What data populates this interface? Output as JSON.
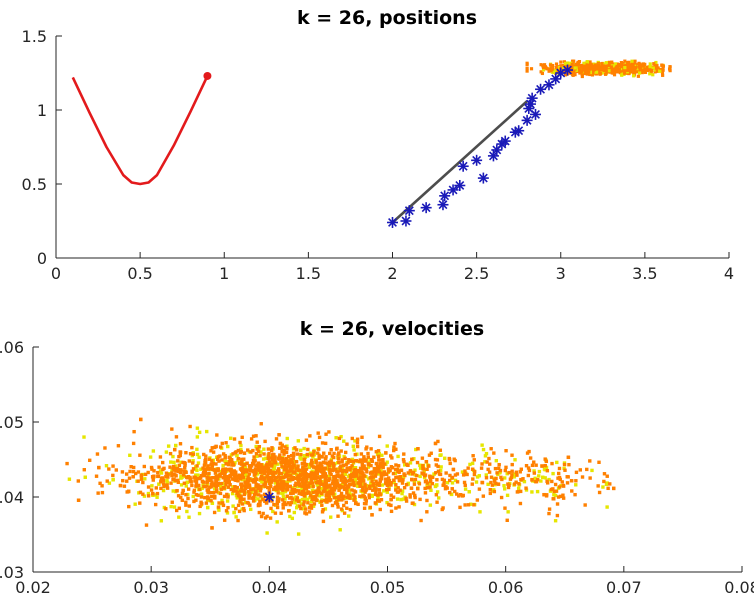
{
  "chart_data": [
    {
      "type": "line",
      "title": "k = 26, positions",
      "xlim": [
        0,
        4
      ],
      "ylim": [
        0,
        1.5
      ],
      "xticks": [
        "0",
        "0.5",
        "1",
        "1.5",
        "2",
        "2.5",
        "3",
        "3.5",
        "4"
      ],
      "yticks": [
        "0",
        "0.5",
        "1",
        "1.5"
      ],
      "grid": false,
      "colors": {
        "curve": "#e31a1c",
        "line": "#4d4d4d",
        "stars": "#1a1ab8",
        "cloud_orange": "#ff8000",
        "cloud_yellow": "#e6e600"
      },
      "curve": {
        "x": [
          0.1,
          0.2,
          0.3,
          0.4,
          0.45,
          0.5,
          0.55,
          0.6,
          0.7,
          0.8,
          0.9
        ],
        "y": [
          1.22,
          0.98,
          0.75,
          0.56,
          0.51,
          0.5,
          0.51,
          0.56,
          0.76,
          0.99,
          1.23
        ],
        "end_marker": [
          0.9,
          1.23
        ]
      },
      "segment": {
        "x": [
          2.0,
          2.8
        ],
        "y": [
          0.24,
          1.06
        ]
      },
      "stars": {
        "x": [
          2.0,
          2.08,
          2.1,
          2.2,
          2.3,
          2.31,
          2.36,
          2.4,
          2.42,
          2.5,
          2.54,
          2.6,
          2.62,
          2.65,
          2.67,
          2.73,
          2.75,
          2.8,
          2.81,
          2.82,
          2.83,
          2.85,
          2.88,
          2.93,
          2.97,
          3.0,
          3.04
        ],
        "y": [
          0.24,
          0.25,
          0.32,
          0.34,
          0.36,
          0.42,
          0.46,
          0.49,
          0.62,
          0.66,
          0.54,
          0.69,
          0.73,
          0.77,
          0.79,
          0.85,
          0.86,
          0.93,
          1.01,
          1.04,
          1.08,
          0.97,
          1.14,
          1.17,
          1.21,
          1.25,
          1.27
        ]
      },
      "cloud": {
        "x_range": [
          2.8,
          3.65
        ],
        "y_range": [
          1.22,
          1.33
        ],
        "center": [
          3.2,
          1.28
        ]
      }
    },
    {
      "type": "scatter",
      "title": "k = 26, velocities",
      "xlim": [
        0.02,
        0.08
      ],
      "ylim": [
        0.03,
        0.06
      ],
      "xticks": [
        "0.02",
        "0.03",
        "0.04",
        "0.05",
        "0.06",
        "0.07",
        "0.08"
      ],
      "yticks": [
        "0.03",
        "0.04",
        "0.05",
        "0.06"
      ],
      "grid": false,
      "colors": {
        "points_orange": "#ff8000",
        "points_yellow": "#e6e600",
        "marker": "#1a1ab8"
      },
      "cloud": {
        "main_center": [
          0.042,
          0.0425
        ],
        "main_spread": [
          0.0065,
          0.0022
        ],
        "tail_center": [
          0.062,
          0.0423
        ],
        "tail_spread": [
          0.0035,
          0.0018
        ],
        "x_range": [
          0.022,
          0.07
        ],
        "y_range": [
          0.032,
          0.051
        ]
      },
      "marker": [
        0.04,
        0.04
      ]
    }
  ]
}
